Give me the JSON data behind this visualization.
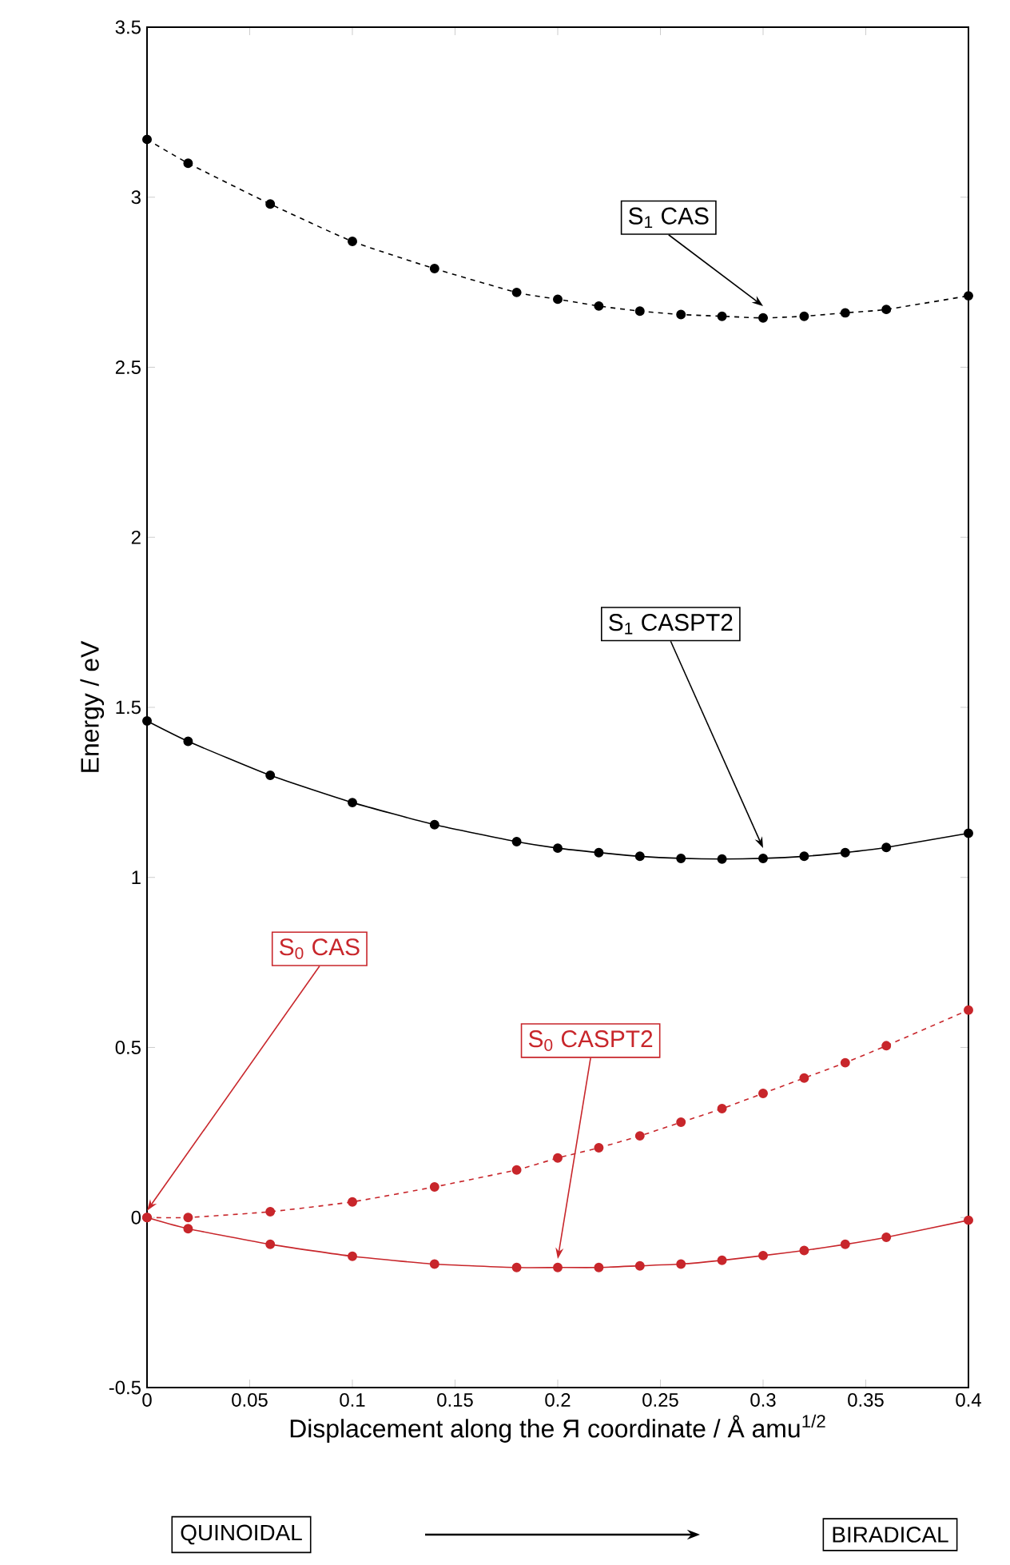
{
  "chart_data": {
    "type": "line",
    "xlabel": "Displacement along the Я coordinate / Å amu$^{1/2}$",
    "ylabel": "Energy / eV",
    "x": [
      0,
      0.02,
      0.06,
      0.1,
      0.14,
      0.18,
      0.2,
      0.22,
      0.24,
      0.26,
      0.28,
      0.3,
      0.32,
      0.34,
      0.36,
      0.4
    ],
    "series": [
      {
        "name": "S$_{1}$ CAS",
        "color": "#000000",
        "line_style": "dashed",
        "values": [
          3.17,
          3.1,
          2.98,
          2.87,
          2.79,
          2.72,
          2.7,
          2.68,
          2.665,
          2.655,
          2.65,
          2.645,
          2.65,
          2.66,
          2.67,
          2.71
        ]
      },
      {
        "name": "S$_{1}$ CASPT2",
        "color": "#000000",
        "line_style": "solid",
        "values": [
          1.46,
          1.4,
          1.3,
          1.22,
          1.155,
          1.105,
          1.086,
          1.073,
          1.062,
          1.056,
          1.054,
          1.056,
          1.062,
          1.073,
          1.088,
          1.13
        ]
      },
      {
        "name": "S$_{0}$ CAS",
        "color": "#c8262b",
        "line_style": "dashed",
        "values": [
          0,
          0,
          0.017,
          0.046,
          0.09,
          0.14,
          0.175,
          0.205,
          0.24,
          0.28,
          0.32,
          0.365,
          0.41,
          0.455,
          0.505,
          0.61
        ]
      },
      {
        "name": "S$_{0}$ CASPT2",
        "color": "#c8262b",
        "line_style": "solid",
        "values": [
          0,
          -0.033,
          -0.079,
          -0.114,
          -0.137,
          -0.147,
          -0.147,
          -0.147,
          -0.142,
          -0.137,
          -0.126,
          -0.112,
          -0.097,
          -0.079,
          -0.058,
          -0.008
        ]
      }
    ],
    "marker": "circle",
    "grid": false,
    "xlim": [
      0,
      0.4
    ],
    "ylim": [
      -0.5,
      3.5
    ],
    "xticks": [
      0,
      0.05,
      0.1,
      0.15,
      0.2,
      0.25,
      0.3,
      0.35,
      0.4
    ],
    "yticks": [
      -0.5,
      0,
      0.5,
      1,
      1.5,
      2,
      2.5,
      3,
      3.5
    ],
    "annotations": [
      "QUINOIDAL",
      "BIRADICAL"
    ]
  }
}
